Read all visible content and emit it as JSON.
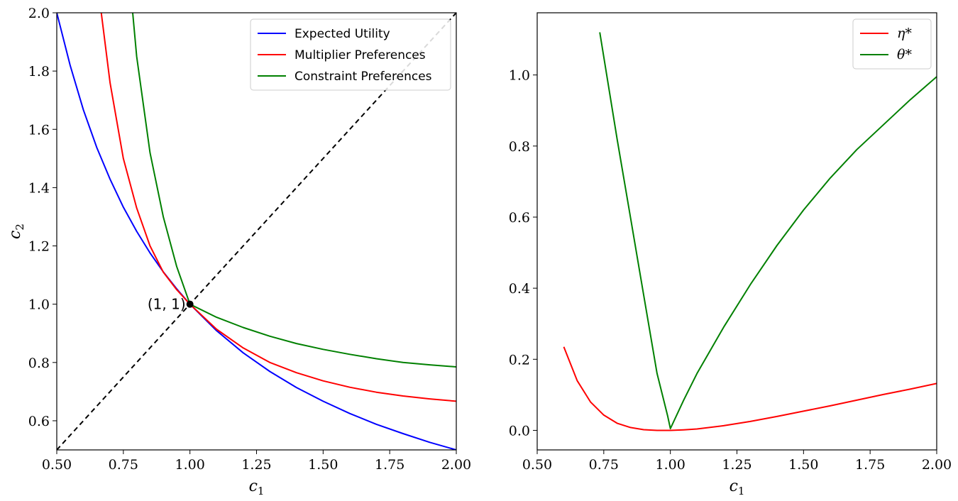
{
  "chart_data": [
    {
      "type": "line",
      "xlabel": "c1",
      "ylabel": "c2",
      "xlim": [
        0.5,
        2.0
      ],
      "ylim": [
        0.5,
        2.0
      ],
      "xticks": [
        "0.50",
        "0.75",
        "1.00",
        "1.25",
        "1.50",
        "1.75",
        "2.00"
      ],
      "yticks": [
        "0.6",
        "0.8",
        "1.0",
        "1.2",
        "1.4",
        "1.6",
        "1.8",
        "2.0"
      ],
      "legend_position": "top-right",
      "series": [
        {
          "name": "Expected Utility",
          "color": "#0000ff",
          "x": [
            0.5,
            0.55,
            0.6,
            0.65,
            0.7,
            0.75,
            0.8,
            0.85,
            0.9,
            0.95,
            1.0,
            1.1,
            1.2,
            1.3,
            1.4,
            1.5,
            1.6,
            1.7,
            1.8,
            1.9,
            2.0
          ],
          "y": [
            2.0,
            1.82,
            1.667,
            1.538,
            1.429,
            1.333,
            1.25,
            1.176,
            1.111,
            1.053,
            1.0,
            0.909,
            0.833,
            0.769,
            0.714,
            0.667,
            0.625,
            0.588,
            0.556,
            0.526,
            0.5
          ]
        },
        {
          "name": "Multiplier Preferences",
          "color": "#ff0000",
          "x": [
            0.667,
            0.7,
            0.75,
            0.8,
            0.85,
            0.9,
            0.95,
            1.0,
            1.1,
            1.2,
            1.3,
            1.4,
            1.5,
            1.6,
            1.7,
            1.8,
            1.9,
            2.0
          ],
          "y": [
            2.0,
            1.76,
            1.5,
            1.33,
            1.2,
            1.11,
            1.05,
            1.0,
            0.914,
            0.85,
            0.8,
            0.765,
            0.737,
            0.715,
            0.698,
            0.685,
            0.675,
            0.667
          ]
        },
        {
          "name": "Constraint Preferences",
          "color": "#008000",
          "x": [
            0.785,
            0.8,
            0.85,
            0.9,
            0.95,
            1.0,
            1.1,
            1.2,
            1.3,
            1.4,
            1.5,
            1.6,
            1.7,
            1.8,
            1.9,
            2.0
          ],
          "y": [
            2.0,
            1.85,
            1.52,
            1.3,
            1.13,
            1.0,
            0.955,
            0.92,
            0.89,
            0.865,
            0.845,
            0.828,
            0.813,
            0.8,
            0.792,
            0.785
          ]
        }
      ],
      "diagonal": {
        "x": [
          0.5,
          2.0
        ],
        "y": [
          0.5,
          2.0
        ],
        "color": "#000000",
        "style": "dashed"
      },
      "point": {
        "x": 1.0,
        "y": 1.0,
        "label": "(1, 1)"
      }
    },
    {
      "type": "line",
      "xlabel": "c1",
      "ylabel": "",
      "xlim": [
        0.5,
        2.0
      ],
      "ylim": [
        -0.055,
        1.175
      ],
      "xticks": [
        "0.50",
        "0.75",
        "1.00",
        "1.25",
        "1.50",
        "1.75",
        "2.00"
      ],
      "yticks": [
        "0.0",
        "0.2",
        "0.4",
        "0.6",
        "0.8",
        "1.0"
      ],
      "legend_position": "top-right",
      "series": [
        {
          "name": "η*",
          "color": "#ff0000",
          "x": [
            0.6,
            0.65,
            0.7,
            0.75,
            0.8,
            0.85,
            0.9,
            0.95,
            1.0,
            1.05,
            1.1,
            1.2,
            1.3,
            1.4,
            1.5,
            1.6,
            1.7,
            1.8,
            1.9,
            2.0
          ],
          "y": [
            0.235,
            0.14,
            0.08,
            0.043,
            0.02,
            0.008,
            0.002,
            0.0,
            0.0,
            0.0015,
            0.004,
            0.013,
            0.025,
            0.039,
            0.054,
            0.069,
            0.085,
            0.101,
            0.116,
            0.132
          ]
        },
        {
          "name": "θ*",
          "color": "#008000",
          "x": [
            0.735,
            0.8,
            0.85,
            0.9,
            0.95,
            0.99,
            1.0,
            1.05,
            1.1,
            1.2,
            1.3,
            1.4,
            1.5,
            1.6,
            1.7,
            1.8,
            1.9,
            2.0
          ],
          "y": [
            1.12,
            0.82,
            0.6,
            0.38,
            0.16,
            0.04,
            0.005,
            0.085,
            0.16,
            0.29,
            0.41,
            0.52,
            0.62,
            0.71,
            0.79,
            0.86,
            0.93,
            0.995
          ]
        }
      ]
    }
  ]
}
